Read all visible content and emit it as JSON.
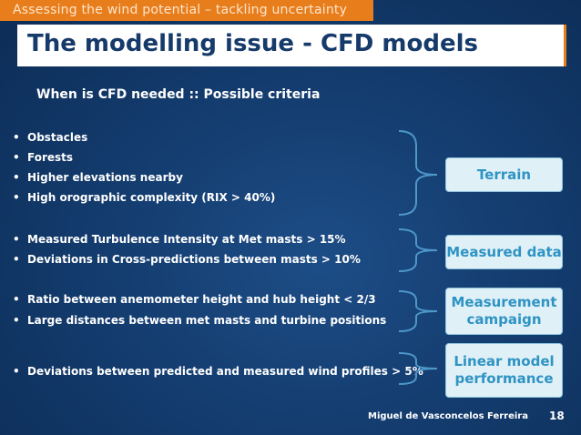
{
  "header": {
    "section": "Assessing the wind potential – tackling uncertainty",
    "title": "The modelling issue - CFD models"
  },
  "subtitle": "When is CFD needed :: Possible criteria",
  "bullets": [
    "Obstacles",
    "Forests",
    "Higher elevations nearby",
    "High orographic complexity (RIX > 40%)",
    "Measured Turbulence Intensity at Met masts > 15%",
    "Deviations in Cross-predictions between masts > 10%",
    "Ratio between anemometer height and hub height < 2/3",
    "Large distances between met masts and turbine positions",
    "Deviations between predicted and measured wind profiles > 5%"
  ],
  "bullet_marker": "•",
  "criteria": [
    "Terrain",
    "Measured data",
    "Measurement\ncampaign",
    "Linear model\nperformance"
  ],
  "footer": {
    "author": "Miguel de Vasconcelos Ferreira",
    "page": "18"
  },
  "colors": {
    "accent": "#e87d1c",
    "title_text": "#163a6a",
    "criteria_text": "#2f93c4",
    "criteria_bg": "#dff1f7"
  }
}
